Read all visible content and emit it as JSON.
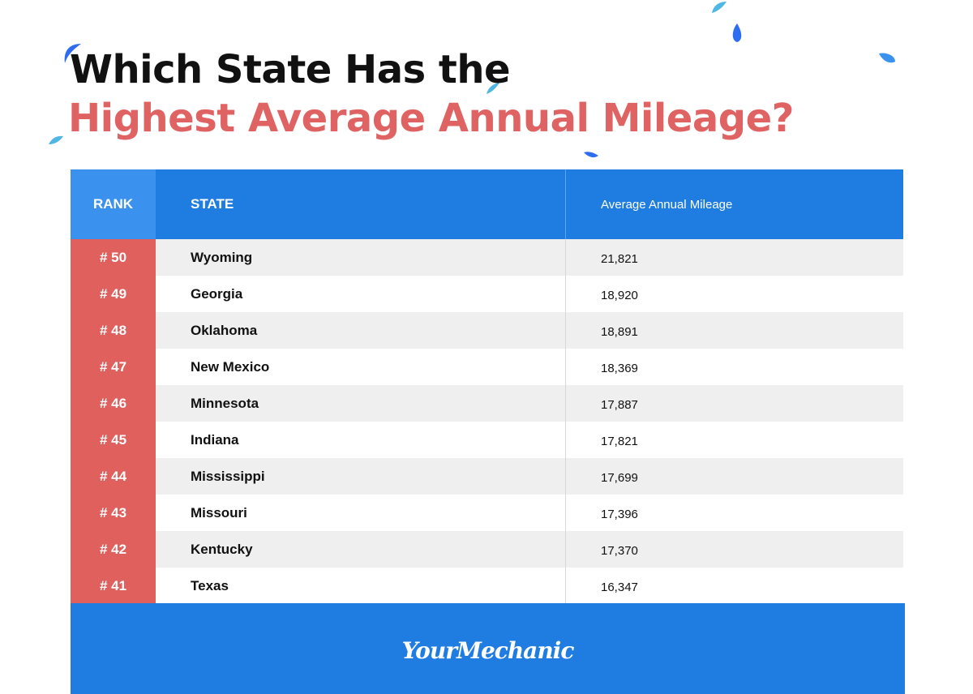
{
  "title": {
    "line1": "Which State Has the",
    "line2": "Highest Average Annual Mileage?"
  },
  "colors": {
    "title_accent": "#e06363",
    "header_blue": "#1f7de1",
    "rank_blue": "#3a91ee",
    "rank_red": "#e0605e",
    "row_alt": "#efefef"
  },
  "table": {
    "headers": {
      "rank": "RANK",
      "state": "STATE",
      "mileage": "Average Annual Mileage"
    },
    "rows": [
      {
        "rank": "# 50",
        "state": "Wyoming",
        "mileage": "21,821"
      },
      {
        "rank": "# 49",
        "state": "Georgia",
        "mileage": "18,920"
      },
      {
        "rank": "# 48",
        "state": "Oklahoma",
        "mileage": "18,891"
      },
      {
        "rank": "# 47",
        "state": "New Mexico",
        "mileage": "18,369"
      },
      {
        "rank": "# 46",
        "state": "Minnesota",
        "mileage": "17,887"
      },
      {
        "rank": "# 45",
        "state": "Indiana",
        "mileage": "17,821"
      },
      {
        "rank": "# 44",
        "state": "Mississippi",
        "mileage": "17,699"
      },
      {
        "rank": "# 43",
        "state": "Missouri",
        "mileage": "17,396"
      },
      {
        "rank": "# 42",
        "state": "Kentucky",
        "mileage": "17,370"
      },
      {
        "rank": "# 41",
        "state": "Texas",
        "mileage": "16,347"
      }
    ]
  },
  "footer": {
    "logo": "YourMechanic"
  }
}
